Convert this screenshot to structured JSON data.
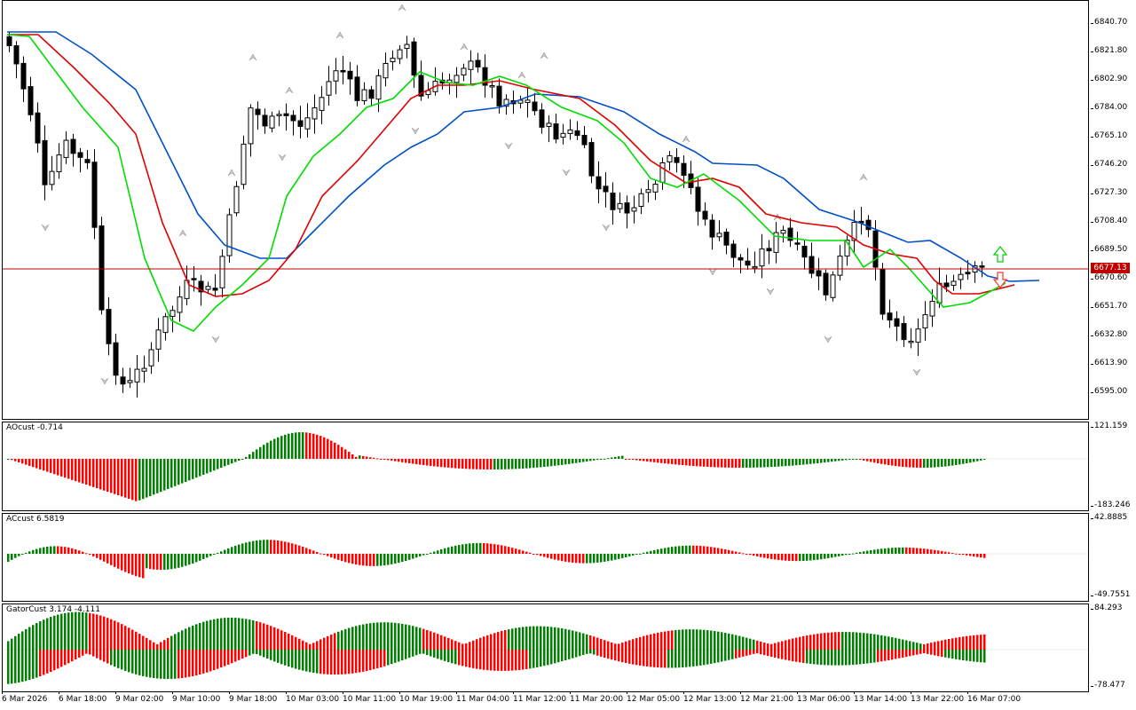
{
  "colors": {
    "bull_hist": "#008000",
    "bear_hist": "#ff0000",
    "jaw_line": "#0050c8",
    "teeth_line": "#e00000",
    "lips_line": "#00dd00",
    "price_line": "#c00000"
  },
  "main_chart": {
    "price_axis": [
      "6840.70",
      "6821.80",
      "6802.90",
      "6784.00",
      "6765.10",
      "6746.20",
      "6727.30",
      "6708.40",
      "6689.50",
      "6670.60",
      "6651.70",
      "6632.80",
      "6613.90",
      "6595.00"
    ],
    "current_price": "6677.13",
    "up_arrow_icon": "up-arrow-icon",
    "down_arrow_icon": "down-arrow-icon"
  },
  "ao_pane": {
    "label": "AOcust -0.714",
    "max": "121.159",
    "min": "-183.246"
  },
  "ac_pane": {
    "label": "ACcust 6.5819",
    "max": "42.8885",
    "min": "-49.7551"
  },
  "gator_pane": {
    "label": "GatorCust 3.174 -4.111",
    "max": "84.293",
    "min": "-78.477"
  },
  "time_axis": [
    "6 Mar 2026",
    "6 Mar 18:00",
    "9 Mar 02:00",
    "9 Mar 10:00",
    "9 Mar 18:00",
    "10 Mar 03:00",
    "10 Mar 11:00",
    "10 Mar 19:00",
    "11 Mar 04:00",
    "11 Mar 12:00",
    "11 Mar 20:00",
    "12 Mar 05:00",
    "12 Mar 13:00",
    "12 Mar 21:00",
    "13 Mar 06:00",
    "13 Mar 14:00",
    "13 Mar 22:00",
    "16 Mar 07:00"
  ]
}
